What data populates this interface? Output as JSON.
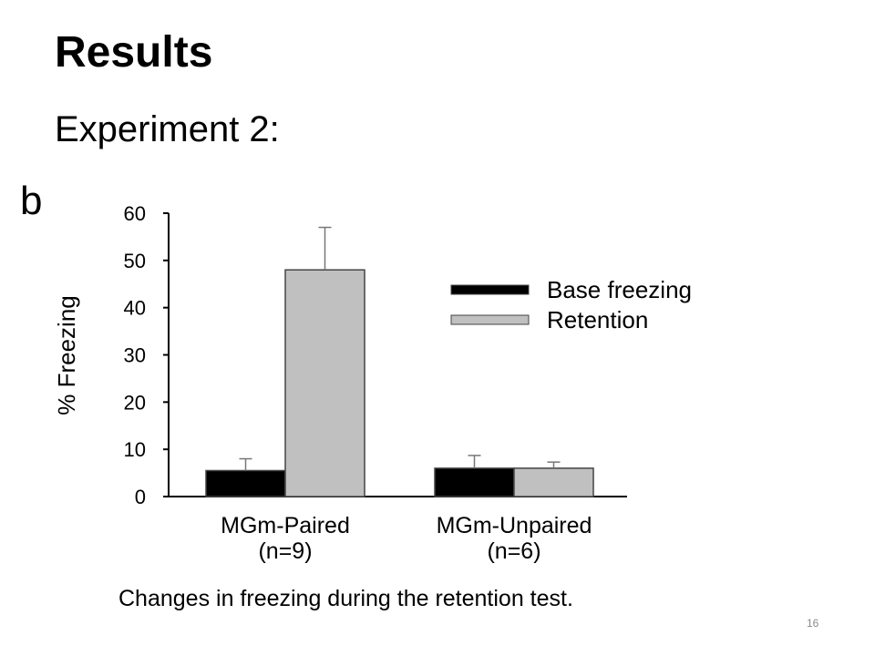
{
  "slide": {
    "title": "Results",
    "subtitle": "Experiment 2:",
    "caption": "Changes in freezing during the retention test.",
    "page_number": "16"
  },
  "chart_data": {
    "type": "bar",
    "panel_label": "b",
    "ylabel": "% Freezing",
    "xlabel": "",
    "ylim": [
      0,
      60
    ],
    "yticks": [
      0,
      10,
      20,
      30,
      40,
      50,
      60
    ],
    "categories": [
      {
        "line1": "MGm-Paired",
        "line2": "(n=9)"
      },
      {
        "line1": "MGm-Unpaired",
        "line2": "(n=6)"
      }
    ],
    "series": [
      {
        "name": "Base freezing",
        "color": "#000000",
        "values": [
          5.5,
          6
        ],
        "errors": [
          2.5,
          2.7
        ]
      },
      {
        "name": "Retention",
        "color": "#c0c0c0",
        "values": [
          48,
          6
        ],
        "errors": [
          9,
          1.3
        ]
      }
    ],
    "legend_position": "right"
  }
}
